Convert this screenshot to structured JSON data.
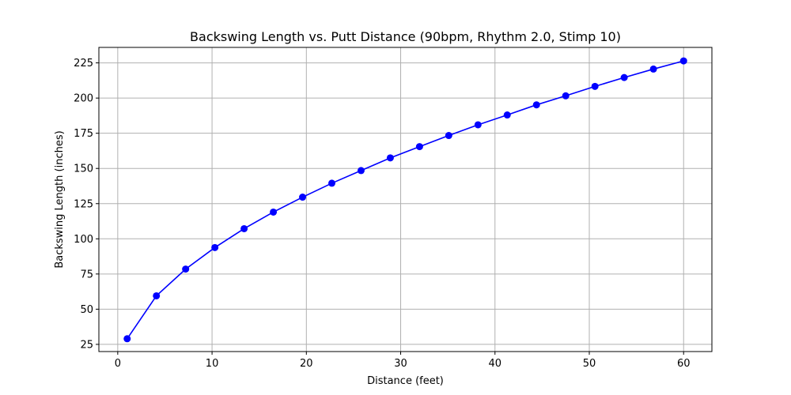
{
  "chart_data": {
    "type": "line",
    "title": "Backswing Length vs. Putt Distance (90bpm, Rhythm 2.0, Stimp 10)",
    "xlabel": "Distance (feet)",
    "ylabel": "Backswing Length (inches)",
    "xlim": [
      -2.0,
      63.0
    ],
    "ylim": [
      19.9,
      236.0
    ],
    "xticks": [
      0,
      10,
      20,
      30,
      40,
      50,
      60
    ],
    "yticks": [
      25,
      50,
      75,
      100,
      125,
      150,
      175,
      200,
      225
    ],
    "grid": true,
    "marker": "circle",
    "series": [
      {
        "color": "#0000ff",
        "x": [
          1.0,
          4.1,
          7.2,
          10.3,
          13.4,
          16.5,
          19.6,
          22.7,
          25.8,
          28.9,
          32.0,
          35.1,
          38.2,
          41.3,
          44.4,
          47.5,
          50.6,
          53.7,
          56.8,
          60.0
        ],
        "y": [
          29.0,
          59.5,
          78.5,
          93.8,
          107.2,
          119.0,
          129.6,
          139.5,
          148.5,
          157.5,
          165.5,
          173.4,
          181.0,
          188.0,
          195.2,
          201.6,
          208.3,
          214.6,
          220.6,
          226.4
        ]
      }
    ]
  }
}
